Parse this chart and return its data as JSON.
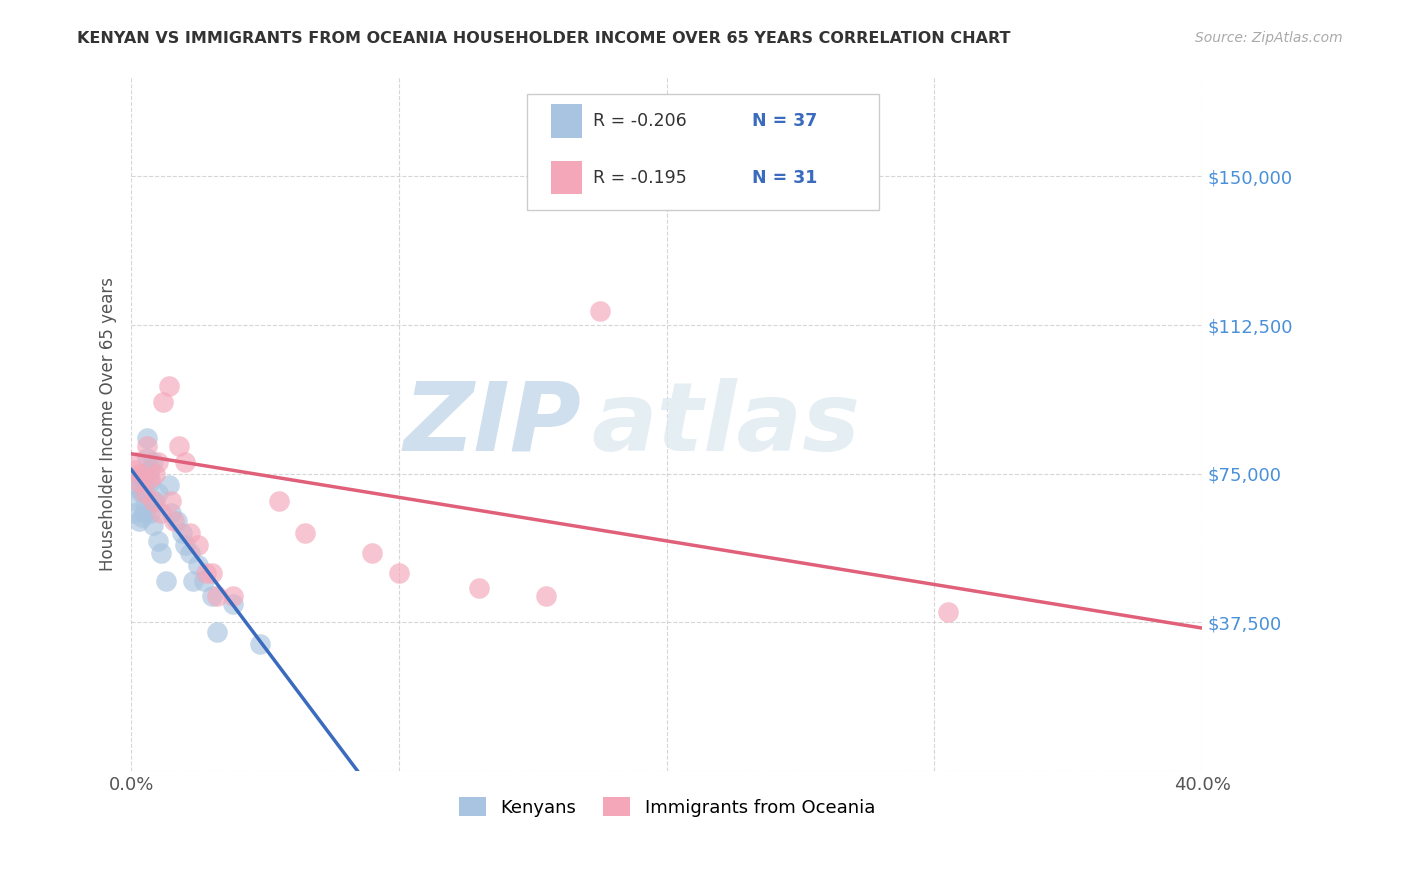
{
  "title": "KENYAN VS IMMIGRANTS FROM OCEANIA HOUSEHOLDER INCOME OVER 65 YEARS CORRELATION CHART",
  "source": "Source: ZipAtlas.com",
  "ylabel": "Householder Income Over 65 years",
  "xlim": [
    0.0,
    0.4
  ],
  "ylim": [
    0,
    175000
  ],
  "yticks": [
    0,
    37500,
    75000,
    112500,
    150000
  ],
  "ytick_labels": [
    "",
    "$37,500",
    "$75,000",
    "$112,500",
    "$150,000"
  ],
  "xticks": [
    0.0,
    0.1,
    0.2,
    0.3,
    0.4
  ],
  "xtick_labels": [
    "0.0%",
    "",
    "",
    "",
    "40.0%"
  ],
  "legend_r_kenyan": "R = -0.206",
  "legend_n_kenyan": "N = 37",
  "legend_r_oceania": "R = -0.195",
  "legend_n_oceania": "N = 31",
  "kenyan_color": "#a8c4e0",
  "oceania_color": "#f4a7b9",
  "kenyan_line_color": "#3a6bbf",
  "oceania_line_color": "#e0607a",
  "watermark_zip": "ZIP",
  "watermark_atlas": "atlas",
  "background_color": "#ffffff",
  "kenyan_x": [
    0.001,
    0.002,
    0.002,
    0.003,
    0.003,
    0.003,
    0.004,
    0.004,
    0.004,
    0.005,
    0.005,
    0.005,
    0.006,
    0.006,
    0.007,
    0.007,
    0.007,
    0.008,
    0.008,
    0.009,
    0.01,
    0.01,
    0.011,
    0.013,
    0.014,
    0.015,
    0.017,
    0.019,
    0.02,
    0.022,
    0.023,
    0.025,
    0.027,
    0.03,
    0.032,
    0.038,
    0.048
  ],
  "kenyan_y": [
    65000,
    72000,
    68000,
    75000,
    71000,
    63000,
    74000,
    70000,
    64000,
    73000,
    67000,
    65000,
    79000,
    84000,
    76000,
    73000,
    65000,
    78000,
    62000,
    68000,
    70000,
    58000,
    55000,
    48000,
    72000,
    65000,
    63000,
    60000,
    57000,
    55000,
    48000,
    52000,
    48000,
    44000,
    35000,
    42000,
    32000
  ],
  "oceania_x": [
    0.001,
    0.002,
    0.003,
    0.004,
    0.005,
    0.006,
    0.007,
    0.008,
    0.009,
    0.01,
    0.011,
    0.012,
    0.014,
    0.015,
    0.016,
    0.018,
    0.02,
    0.022,
    0.025,
    0.028,
    0.03,
    0.032,
    0.038,
    0.055,
    0.065,
    0.09,
    0.1,
    0.13,
    0.155,
    0.175,
    0.305
  ],
  "oceania_y": [
    76000,
    78000,
    73000,
    75000,
    70000,
    82000,
    74000,
    68000,
    75000,
    78000,
    65000,
    93000,
    97000,
    68000,
    63000,
    82000,
    78000,
    60000,
    57000,
    50000,
    50000,
    44000,
    44000,
    68000,
    60000,
    55000,
    50000,
    46000,
    44000,
    116000,
    40000
  ],
  "kenyan_line_solid_end": 0.22,
  "oceania_line_end": 0.4,
  "kenyan_line_y0": 76000,
  "kenyan_line_slope": -900000,
  "oceania_line_y0": 80000,
  "oceania_line_slope": -110000
}
